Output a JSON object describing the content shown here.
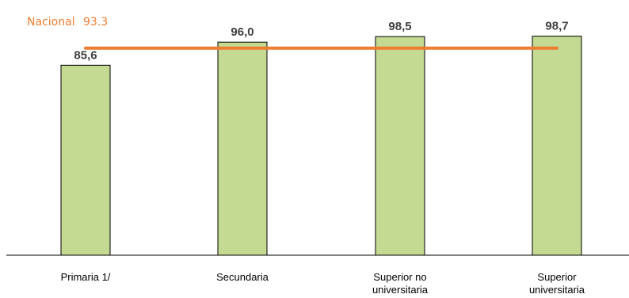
{
  "chart_data": {
    "type": "bar",
    "categories": [
      [
        "Primaria 1/"
      ],
      [
        "Secundaria"
      ],
      [
        "Superior no",
        "universitaria"
      ],
      [
        "Superior",
        "universitaria"
      ]
    ],
    "values": [
      85.6,
      96.0,
      98.5,
      98.7
    ],
    "value_labels": [
      "85,6",
      "96,0",
      "98,5",
      "98,7"
    ],
    "reference_line": {
      "label": "Nacional",
      "value": 93.3,
      "value_label": "93.3",
      "color": "#ed7d31"
    },
    "bar_color": "#c4d991",
    "ylim": [
      0,
      105
    ],
    "grid": false,
    "title": "",
    "xlabel": "",
    "ylabel": ""
  }
}
